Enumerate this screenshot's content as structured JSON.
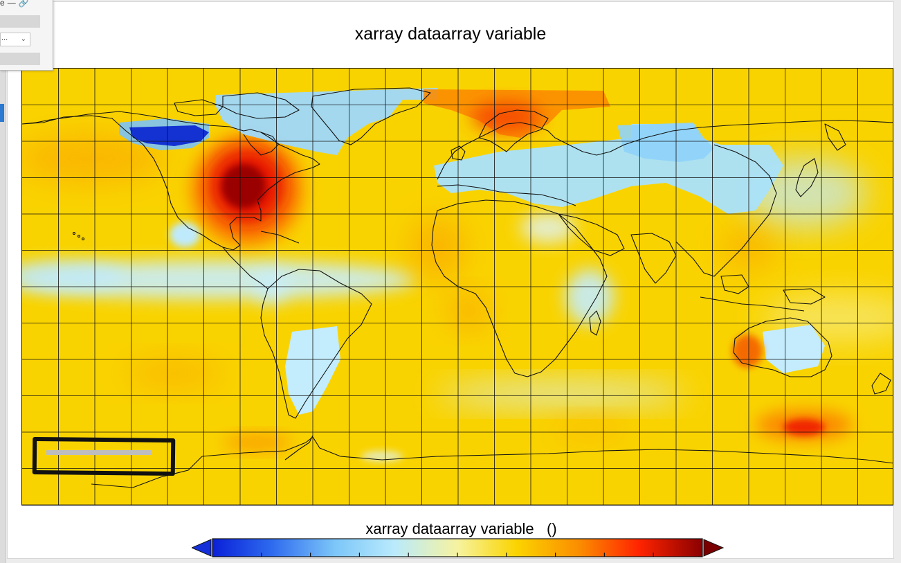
{
  "figure": {
    "title": "xarray dataarray variable",
    "colorbar_label": "xarray dataarray variable",
    "colorbar_units": "()"
  },
  "toolbar": {
    "label_fragment": "e",
    "select_value": "...",
    "icons": [
      "dash-icon",
      "link-icon",
      "chevron-down-icon"
    ]
  },
  "colors": {
    "ocean_base": "#f9d300",
    "extend_min": "#1530d8",
    "extend_max": "#7a0000",
    "colormap": [
      "#0a20d8",
      "#3a78f0",
      "#8ed2fa",
      "#c9f0fc",
      "#f7f27a",
      "#fbd400",
      "#fb9a00",
      "#ff2400",
      "#8a0000"
    ]
  },
  "chart_data": {
    "type": "heatmap",
    "title": "xarray dataarray variable",
    "colorbar": {
      "label": "xarray dataarray variable",
      "units": "()",
      "extend": "both",
      "tick_count": 9,
      "tick_labels": []
    },
    "projection": "PlateCarree",
    "coastlines": true,
    "gridlines": true,
    "anomaly_regions": [
      {
        "name": "eastern-north-america",
        "level": "strong-warm"
      },
      {
        "name": "western-australia",
        "level": "warm"
      },
      {
        "name": "southern-indian-ocean",
        "level": "warm"
      },
      {
        "name": "northern-scandinavia-arctic",
        "level": "warm"
      },
      {
        "name": "western-canada-arctic",
        "level": "strong-cold"
      },
      {
        "name": "greenland",
        "level": "cool"
      },
      {
        "name": "southern-europe-central-asia",
        "level": "cool"
      },
      {
        "name": "siberia",
        "level": "cool"
      },
      {
        "name": "tropical-pacific-band",
        "level": "cool"
      },
      {
        "name": "southern-south-america",
        "level": "cool"
      },
      {
        "name": "east-africa",
        "level": "cool"
      },
      {
        "name": "eastern-australia",
        "level": "cool"
      }
    ]
  }
}
